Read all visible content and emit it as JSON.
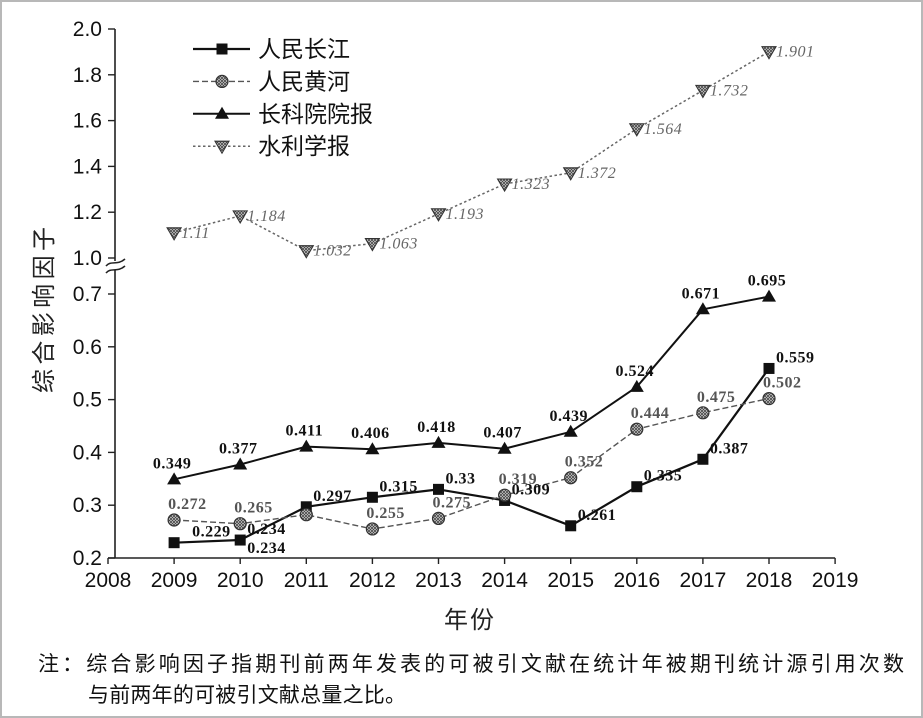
{
  "chart_data": {
    "type": "line",
    "xlabel": "年份",
    "ylabel": "综合影响因子",
    "x": [
      2009,
      2010,
      2011,
      2012,
      2013,
      2014,
      2015,
      2016,
      2017,
      2018
    ],
    "xlim": [
      2008,
      2019
    ],
    "xticks": [
      "2008",
      "2009",
      "2010",
      "2011",
      "2012",
      "2013",
      "2014",
      "2015",
      "2016",
      "2017",
      "2018",
      "2019"
    ],
    "y_axis_break": true,
    "ylim_upper": [
      1.0,
      2.0
    ],
    "ylim_lower": [
      0.2,
      0.7
    ],
    "yticks_upper": [
      "1.0",
      "1.2",
      "1.4",
      "1.6",
      "1.8",
      "2.0"
    ],
    "yticks_lower": [
      "0.2",
      "0.3",
      "0.4",
      "0.5",
      "0.6",
      "0.7"
    ],
    "grid": false,
    "legend_placement": "top-left",
    "series": [
      {
        "name": "人民长江",
        "axis": "lower",
        "marker": "square",
        "line": "solid",
        "color": "#111111",
        "values": [
          0.229,
          0.234,
          0.297,
          0.315,
          0.33,
          0.309,
          0.261,
          0.335,
          0.387,
          0.559
        ],
        "labels": [
          "0.229",
          "0.234",
          "0.297",
          "0.315",
          "0.33",
          "0.309",
          "0.261",
          "0.335",
          "0.387",
          "0.559"
        ]
      },
      {
        "name": "人民黄河",
        "axis": "lower",
        "marker": "circle",
        "line": "dashed",
        "color": "#555555",
        "values": [
          0.272,
          0.265,
          0.282,
          0.255,
          0.275,
          0.319,
          0.352,
          0.444,
          0.475,
          0.502
        ],
        "labels": [
          "0.272",
          "0.265",
          null,
          "0.255",
          "0.275",
          "0.319",
          "0.352",
          "0.444",
          "0.475",
          "0.502"
        ]
      },
      {
        "name": "长科院院报",
        "axis": "lower",
        "marker": "triangle",
        "line": "solid",
        "color": "#111111",
        "values": [
          0.349,
          0.377,
          0.411,
          0.406,
          0.418,
          0.407,
          0.439,
          0.524,
          0.671,
          0.695
        ],
        "labels": [
          "0.349",
          "0.377",
          "0.411",
          "0.406",
          "0.418",
          "0.407",
          "0.439",
          "0.524",
          "0.671",
          "0.695"
        ]
      },
      {
        "name": "水利学报",
        "axis": "upper",
        "marker": "triangle-down",
        "line": "dotted",
        "color": "#666666",
        "values": [
          1.11,
          1.184,
          1.032,
          1.063,
          1.193,
          1.323,
          1.372,
          1.564,
          1.732,
          1.901
        ],
        "labels": [
          "1.11",
          "1.184",
          "1.032",
          "1.063",
          "1.193",
          "1.323",
          "1.372",
          "1.564",
          "1.732",
          "1.901"
        ]
      }
    ],
    "annotations": [
      {
        "text": "0.234",
        "x": 2010,
        "y": 0.234
      }
    ]
  },
  "note": {
    "line1": "注：综合影响因子指期刊前两年发表的可被引文献在统计年被期刊统计源引用次数",
    "line2": "与前两年的可被引文献总量之比。"
  }
}
